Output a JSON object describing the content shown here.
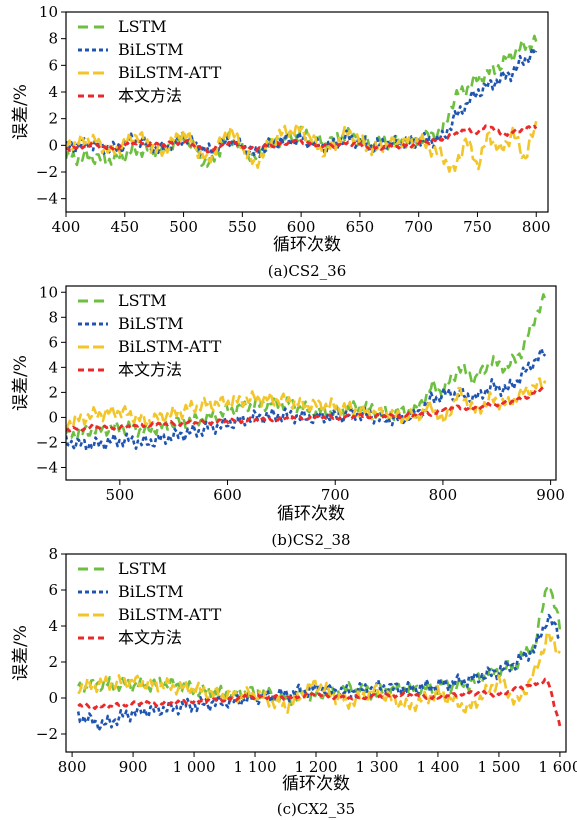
{
  "colors": {
    "LSTM": "#6cbf3f",
    "BiLSTM": "#1f55b0",
    "BiLSTM-ATT": "#f2c62a",
    "本文方法": "#ea2a2a"
  },
  "chart_data": [
    {
      "type": "line",
      "caption": "(a)CS2_36",
      "xlabel": "循环次数",
      "ylabel": "误差/%",
      "xlim": [
        400,
        810
      ],
      "ylim": [
        -5,
        10
      ],
      "xticks": [
        400,
        450,
        500,
        550,
        600,
        650,
        700,
        750,
        800
      ],
      "xtick_labels": [
        "400",
        "450",
        "500",
        "550",
        "600",
        "650",
        "700",
        "750",
        "800"
      ],
      "yticks": [
        -4,
        -2,
        0,
        2,
        4,
        6,
        8,
        10
      ],
      "ytick_labels": [
        "−4",
        "−2",
        "0",
        "2",
        "4",
        "6",
        "8",
        "10"
      ],
      "legend_position": "top-left",
      "series": [
        {
          "name": "LSTM",
          "x": [
            400,
            420,
            440,
            460,
            480,
            500,
            520,
            540,
            560,
            580,
            600,
            620,
            640,
            660,
            680,
            700,
            720,
            730,
            740,
            750,
            760,
            770,
            780,
            790,
            800
          ],
          "y": [
            -1.0,
            -0.8,
            -1.2,
            -0.3,
            -0.5,
            0.8,
            -1.5,
            0.7,
            -1.0,
            0.4,
            0.9,
            0.2,
            0.8,
            0.1,
            0.3,
            0.4,
            1.0,
            3.5,
            4.2,
            5.0,
            5.5,
            6.0,
            6.8,
            7.5,
            7.8
          ]
        },
        {
          "name": "BiLSTM",
          "x": [
            400,
            420,
            440,
            460,
            480,
            500,
            520,
            540,
            560,
            580,
            600,
            620,
            640,
            660,
            680,
            700,
            720,
            730,
            740,
            750,
            760,
            770,
            780,
            790,
            800
          ],
          "y": [
            -0.2,
            0.1,
            -0.3,
            0.5,
            -0.4,
            0.6,
            -0.5,
            0.4,
            -0.6,
            0.3,
            0.5,
            -0.2,
            0.6,
            0.0,
            0.2,
            0.3,
            0.5,
            2.0,
            3.0,
            4.0,
            4.5,
            5.0,
            5.5,
            6.5,
            7.0
          ]
        },
        {
          "name": "BiLSTM-ATT",
          "x": [
            400,
            420,
            440,
            460,
            480,
            500,
            520,
            540,
            560,
            580,
            600,
            620,
            640,
            660,
            680,
            700,
            720,
            730,
            740,
            750,
            760,
            770,
            780,
            790,
            800
          ],
          "y": [
            0.0,
            0.5,
            -0.5,
            0.8,
            -0.6,
            1.0,
            -1.2,
            1.2,
            -1.5,
            0.8,
            1.2,
            -0.5,
            1.0,
            -0.3,
            0.2,
            0.4,
            -0.8,
            -2.0,
            0.5,
            -1.5,
            0.8,
            -0.5,
            1.0,
            -1.0,
            1.5
          ]
        },
        {
          "name": "本文方法",
          "x": [
            400,
            420,
            440,
            460,
            480,
            500,
            520,
            540,
            560,
            580,
            600,
            620,
            640,
            660,
            680,
            700,
            720,
            730,
            740,
            750,
            760,
            770,
            780,
            790,
            800
          ],
          "y": [
            -0.3,
            0.0,
            -0.2,
            0.2,
            0.0,
            0.3,
            -0.4,
            0.2,
            -0.3,
            0.1,
            0.3,
            -0.1,
            0.2,
            -0.2,
            -0.1,
            0.1,
            0.5,
            0.8,
            1.2,
            1.0,
            1.5,
            0.8,
            1.0,
            1.2,
            1.4
          ]
        }
      ]
    },
    {
      "type": "line",
      "caption": "(b)CS2_38",
      "xlabel": "循环次数",
      "ylabel": "误差/%",
      "xlim": [
        450,
        905
      ],
      "ylim": [
        -5,
        10.5
      ],
      "xticks": [
        500,
        600,
        700,
        800,
        900
      ],
      "xtick_labels": [
        "500",
        "600",
        "700",
        "800",
        "900"
      ],
      "yticks": [
        -4,
        -2,
        0,
        2,
        4,
        6,
        8,
        10
      ],
      "ytick_labels": [
        "−4",
        "−2",
        "0",
        "2",
        "4",
        "6",
        "8",
        "10"
      ],
      "legend_position": "top-left",
      "series": [
        {
          "name": "LSTM",
          "x": [
            450,
            475,
            500,
            525,
            550,
            575,
            600,
            625,
            650,
            675,
            700,
            725,
            750,
            775,
            790,
            800,
            815,
            830,
            845,
            860,
            875,
            885,
            895
          ],
          "y": [
            -1.5,
            -1.0,
            -0.8,
            -1.0,
            -0.5,
            -0.2,
            0.5,
            1.0,
            1.2,
            0.6,
            0.5,
            0.8,
            0.3,
            0.5,
            2.5,
            2.0,
            4.0,
            3.0,
            4.5,
            4.0,
            5.5,
            8.0,
            9.5
          ]
        },
        {
          "name": "BiLSTM",
          "x": [
            450,
            475,
            500,
            525,
            550,
            575,
            600,
            625,
            650,
            675,
            700,
            725,
            750,
            775,
            790,
            800,
            815,
            830,
            845,
            860,
            875,
            885,
            895
          ],
          "y": [
            -2.0,
            -2.2,
            -1.8,
            -2.0,
            -1.5,
            -1.0,
            -0.5,
            0.0,
            0.2,
            0.0,
            0.1,
            0.3,
            -0.2,
            0.2,
            1.5,
            1.8,
            2.0,
            1.5,
            2.5,
            2.2,
            3.5,
            4.5,
            5.2
          ]
        },
        {
          "name": "BiLSTM-ATT",
          "x": [
            450,
            475,
            500,
            525,
            550,
            575,
            600,
            625,
            650,
            675,
            700,
            725,
            750,
            775,
            790,
            800,
            815,
            830,
            845,
            860,
            875,
            885,
            895
          ],
          "y": [
            -0.5,
            0.2,
            0.5,
            -0.3,
            0.3,
            1.0,
            1.2,
            1.5,
            1.4,
            1.0,
            0.9,
            0.5,
            0.2,
            0.0,
            1.0,
            -0.5,
            2.0,
            0.5,
            1.5,
            1.0,
            2.0,
            2.5,
            2.8
          ]
        },
        {
          "name": "本文方法",
          "x": [
            450,
            475,
            500,
            525,
            550,
            575,
            600,
            625,
            650,
            675,
            700,
            725,
            750,
            775,
            790,
            800,
            815,
            830,
            845,
            860,
            875,
            885,
            895
          ],
          "y": [
            -1.0,
            -0.8,
            -0.8,
            -0.6,
            -0.5,
            -0.4,
            -0.3,
            -0.2,
            -0.1,
            0.0,
            0.0,
            0.1,
            0.1,
            0.2,
            0.3,
            0.6,
            0.8,
            0.7,
            1.0,
            1.2,
            1.5,
            2.0,
            2.5
          ]
        }
      ]
    },
    {
      "type": "line",
      "caption": "(c)CX2_35",
      "xlabel": "循环次数",
      "ylabel": "误差/%",
      "xlim": [
        790,
        1610
      ],
      "ylim": [
        -3,
        8
      ],
      "xticks": [
        800,
        900,
        1000,
        1100,
        1200,
        1300,
        1400,
        1500,
        1600
      ],
      "xtick_labels": [
        "800",
        "900",
        "1 000",
        "1 100",
        "1 200",
        "1 300",
        "1 400",
        "1 500",
        "1 600"
      ],
      "yticks": [
        -2,
        0,
        2,
        4,
        6,
        8
      ],
      "ytick_labels": [
        "−2",
        "0",
        "2",
        "4",
        "6",
        "8"
      ],
      "legend_position": "top-left",
      "series": [
        {
          "name": "LSTM",
          "x": [
            810,
            850,
            900,
            950,
            1000,
            1050,
            1100,
            1150,
            1200,
            1250,
            1300,
            1350,
            1400,
            1450,
            1500,
            1530,
            1560,
            1580,
            1600
          ],
          "y": [
            0.5,
            0.8,
            0.7,
            0.8,
            0.5,
            0.2,
            0.3,
            0.0,
            0.2,
            0.5,
            0.3,
            0.5,
            0.6,
            0.8,
            1.5,
            2.0,
            3.0,
            6.5,
            4.0
          ]
        },
        {
          "name": "BiLSTM",
          "x": [
            810,
            850,
            900,
            950,
            1000,
            1050,
            1100,
            1150,
            1200,
            1250,
            1300,
            1350,
            1400,
            1450,
            1500,
            1530,
            1560,
            1580,
            1600
          ],
          "y": [
            -1.0,
            -1.5,
            -0.8,
            -0.6,
            -0.4,
            -0.2,
            0.0,
            0.2,
            0.5,
            0.3,
            0.6,
            0.5,
            0.7,
            1.0,
            1.5,
            2.0,
            2.8,
            4.5,
            3.5
          ]
        },
        {
          "name": "BiLSTM-ATT",
          "x": [
            810,
            850,
            900,
            950,
            1000,
            1050,
            1100,
            1150,
            1200,
            1250,
            1300,
            1350,
            1400,
            1450,
            1500,
            1530,
            1560,
            1580,
            1600
          ],
          "y": [
            0.6,
            0.8,
            0.9,
            0.7,
            0.5,
            0.1,
            0.2,
            -0.5,
            0.8,
            -0.3,
            0.4,
            -0.5,
            0.3,
            -0.6,
            1.0,
            -0.3,
            1.5,
            3.5,
            2.5
          ]
        },
        {
          "name": "本文方法",
          "x": [
            810,
            850,
            900,
            950,
            1000,
            1050,
            1100,
            1150,
            1200,
            1250,
            1300,
            1350,
            1400,
            1450,
            1500,
            1530,
            1560,
            1580,
            1600
          ],
          "y": [
            -0.4,
            -0.5,
            -0.3,
            -0.3,
            -0.2,
            -0.1,
            0.1,
            0.0,
            0.2,
            0.0,
            0.1,
            0.2,
            0.0,
            0.3,
            0.2,
            0.5,
            0.8,
            1.0,
            -1.5
          ]
        }
      ]
    }
  ]
}
